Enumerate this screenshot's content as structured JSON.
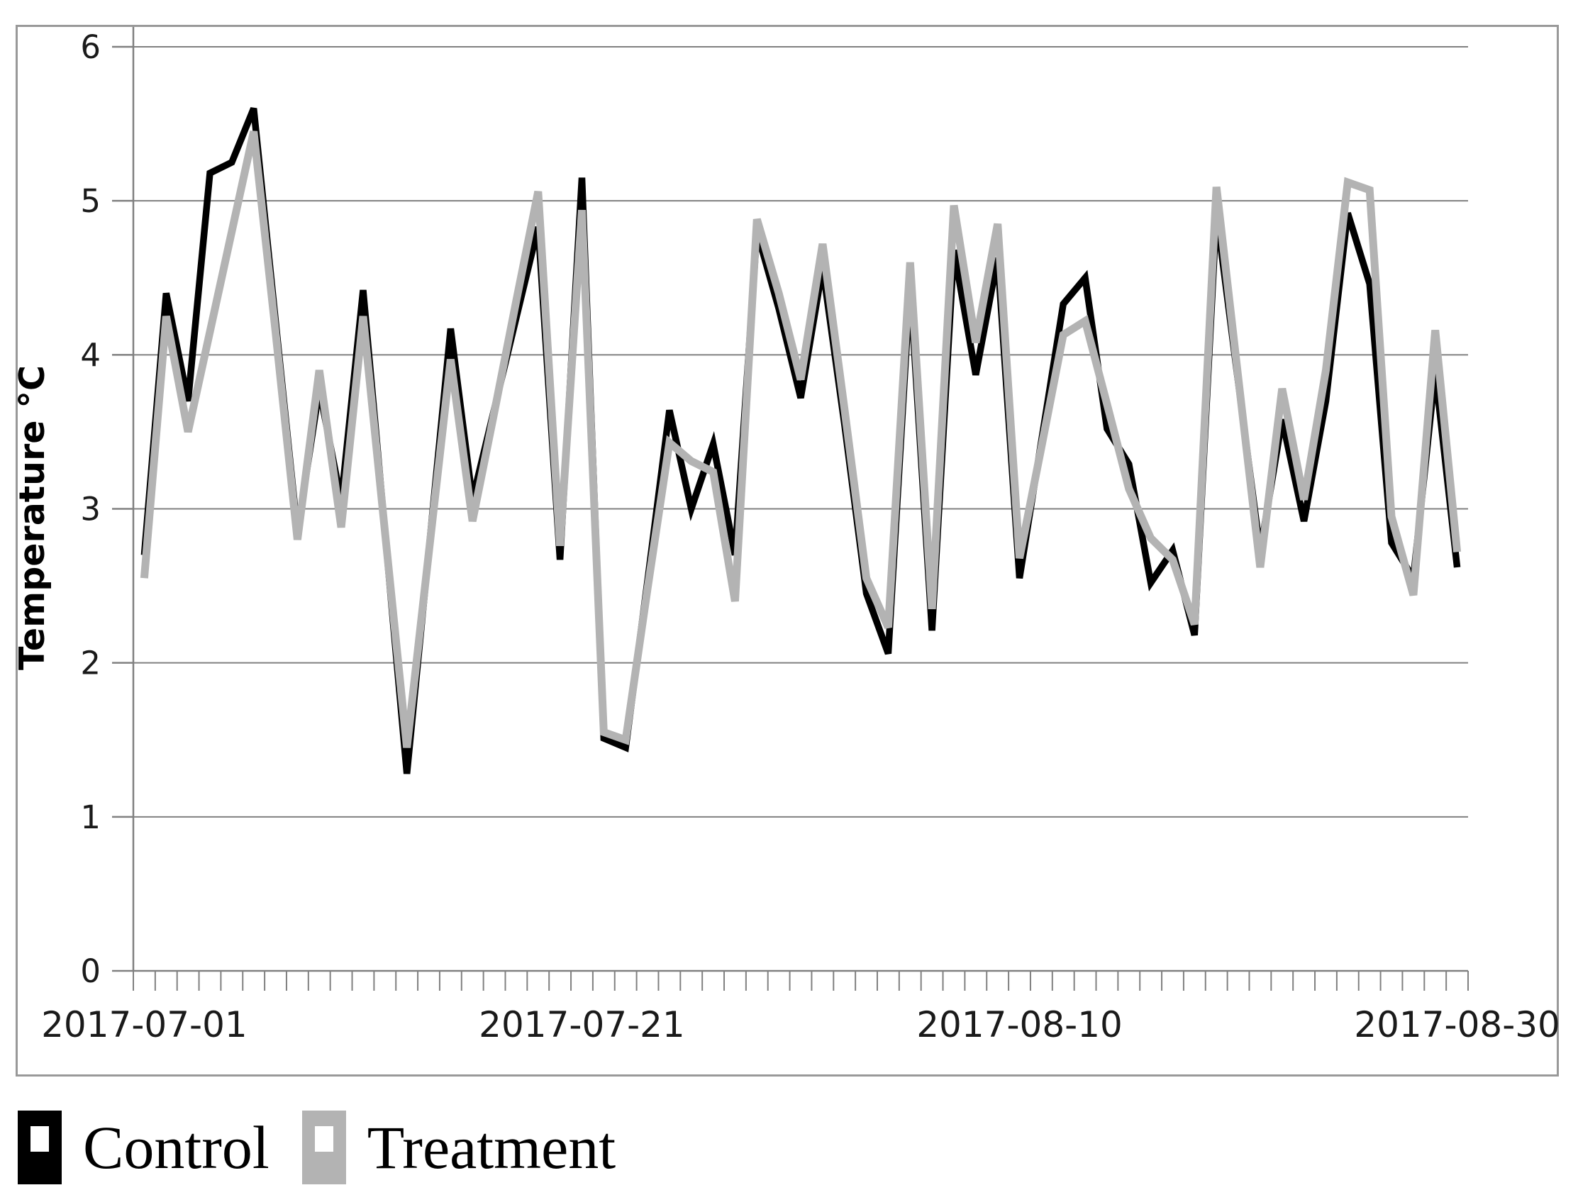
{
  "figure": {
    "background": "#ffffff",
    "border_color": "#999999",
    "gridline_color": "#808080",
    "axis_color": "#808080",
    "tick_label_color": "#1a1a1a"
  },
  "y_axis": {
    "title": "Temperature °C",
    "tick_labels": [
      "0",
      "1",
      "2",
      "3",
      "4",
      "5",
      "6"
    ],
    "min": 0,
    "max": 6
  },
  "x_axis": {
    "labels_shown": [
      "2017-07-01",
      "2017-07-21",
      "2017-08-10",
      "2017-08-30"
    ],
    "label_day_indices": [
      0,
      20,
      40,
      60
    ]
  },
  "legend": {
    "items": [
      {
        "label": "Control",
        "color": "#000000"
      },
      {
        "label": "Treatment",
        "color": "#b3b3b3"
      }
    ]
  },
  "chart_data": {
    "type": "line",
    "title": "",
    "xlabel": "",
    "ylabel": "Temperature °C",
    "ylim": [
      0,
      6
    ],
    "grid": true,
    "legend_position": "bottom-left",
    "x": [
      "2017-07-01",
      "2017-07-02",
      "2017-07-03",
      "2017-07-04",
      "2017-07-05",
      "2017-07-06",
      "2017-07-07",
      "2017-07-08",
      "2017-07-09",
      "2017-07-10",
      "2017-07-11",
      "2017-07-12",
      "2017-07-13",
      "2017-07-14",
      "2017-07-15",
      "2017-07-16",
      "2017-07-17",
      "2017-07-18",
      "2017-07-19",
      "2017-07-20",
      "2017-07-21",
      "2017-07-22",
      "2017-07-23",
      "2017-07-24",
      "2017-07-25",
      "2017-07-26",
      "2017-07-27",
      "2017-07-28",
      "2017-07-29",
      "2017-07-30",
      "2017-07-31",
      "2017-08-01",
      "2017-08-02",
      "2017-08-03",
      "2017-08-04",
      "2017-08-05",
      "2017-08-06",
      "2017-08-07",
      "2017-08-08",
      "2017-08-09",
      "2017-08-10",
      "2017-08-11",
      "2017-08-12",
      "2017-08-13",
      "2017-08-14",
      "2017-08-15",
      "2017-08-16",
      "2017-08-17",
      "2017-08-18",
      "2017-08-19",
      "2017-08-20",
      "2017-08-21",
      "2017-08-22",
      "2017-08-23",
      "2017-08-24",
      "2017-08-25",
      "2017-08-26",
      "2017-08-27",
      "2017-08-28",
      "2017-08-29",
      "2017-08-30"
    ],
    "series": [
      {
        "name": "Control",
        "color": "#000000",
        "values": [
          2.7,
          4.4,
          3.7,
          5.18,
          5.25,
          5.6,
          4.22,
          2.85,
          3.78,
          3.05,
          4.42,
          2.85,
          1.28,
          2.72,
          4.17,
          3.06,
          3.65,
          4.24,
          4.83,
          2.67,
          5.15,
          1.51,
          1.45,
          2.53,
          3.64,
          3.0,
          3.42,
          2.7,
          4.8,
          4.3,
          3.72,
          4.57,
          3.55,
          2.45,
          2.06,
          4.46,
          2.21,
          4.68,
          3.87,
          4.63,
          2.55,
          3.44,
          4.33,
          4.5,
          3.52,
          3.29,
          2.52,
          2.73,
          2.18,
          4.92,
          3.82,
          2.72,
          3.58,
          2.92,
          3.7,
          4.92,
          4.46,
          2.78,
          2.55,
          3.89,
          2.62
        ]
      },
      {
        "name": "Treatment",
        "color": "#b3b3b3",
        "values": [
          2.55,
          4.25,
          3.5,
          4.15,
          4.8,
          5.45,
          4.15,
          2.8,
          3.9,
          2.88,
          4.25,
          2.85,
          1.45,
          2.71,
          3.97,
          2.92,
          3.63,
          4.35,
          5.06,
          2.76,
          4.94,
          1.55,
          1.5,
          2.48,
          3.43,
          3.31,
          3.24,
          2.4,
          4.88,
          4.4,
          3.84,
          4.72,
          3.65,
          2.55,
          2.23,
          4.6,
          2.35,
          4.97,
          4.08,
          4.85,
          2.68,
          3.4,
          4.13,
          4.22,
          3.68,
          3.13,
          2.81,
          2.67,
          2.25,
          5.09,
          3.85,
          2.62,
          3.78,
          3.06,
          3.9,
          5.12,
          5.07,
          2.95,
          2.44,
          4.16,
          2.72
        ]
      }
    ]
  }
}
